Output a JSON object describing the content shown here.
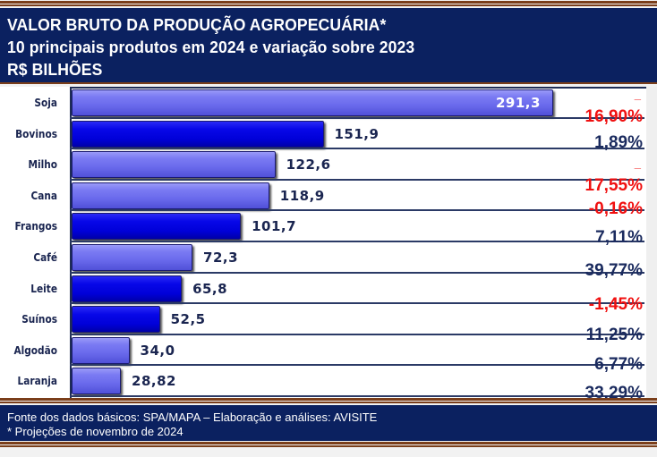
{
  "header": {
    "title": "VALOR BRUTO DA PRODUÇÃO AGROPECUÁRIA*",
    "subtitle": "10 principais produtos em 2024 e variação sobre 2023",
    "unit": "R$ BILHÕES"
  },
  "chart_data": {
    "type": "bar",
    "orientation": "horizontal",
    "title": "VALOR BRUTO DA PRODUÇÃO AGROPECUÁRIA*",
    "subtitle": "10 principais produtos em 2024 e variação sobre 2023",
    "ylabel": "R$ BILHÕES",
    "categories": [
      "Soja",
      "Bovinos",
      "Milho",
      "Cana",
      "Frangos",
      "Café",
      "Leite",
      "Suínos",
      "Algodão",
      "Laranja"
    ],
    "values": [
      291.3,
      151.9,
      122.6,
      118.9,
      101.7,
      72.3,
      65.8,
      52.5,
      34.0,
      28.82
    ],
    "value_labels": [
      "291,3",
      "151,9",
      "122,6",
      "118,9",
      "101,7",
      "72,3",
      "65,8",
      "52,5",
      "34,0",
      "28,82"
    ],
    "variation_labels": [
      "-16,90%",
      "1,89%",
      "-17,55%",
      "-0,16%",
      "7,11%",
      "39,77%",
      "-1,45%",
      "11,25%",
      "6,77%",
      "33,29%"
    ],
    "variation_values": [
      -16.9,
      1.89,
      -17.55,
      -0.16,
      7.11,
      39.77,
      -1.45,
      11.25,
      6.77,
      33.29
    ],
    "bar_styles": [
      "light",
      "dark",
      "light",
      "light",
      "dark",
      "light",
      "dark",
      "dark",
      "light",
      "light"
    ],
    "xlim": [
      0,
      300
    ],
    "colors": {
      "light": "#7b7bf3",
      "dark": "#0808e8",
      "negative": "#f01010",
      "positive": "#1a2a5e"
    }
  },
  "footer": {
    "source": "Fonte dos dados básicos: SPA/MAPA – Elaboração e análises: AVISITE",
    "note": "* Projeções de novembro de 2024"
  }
}
